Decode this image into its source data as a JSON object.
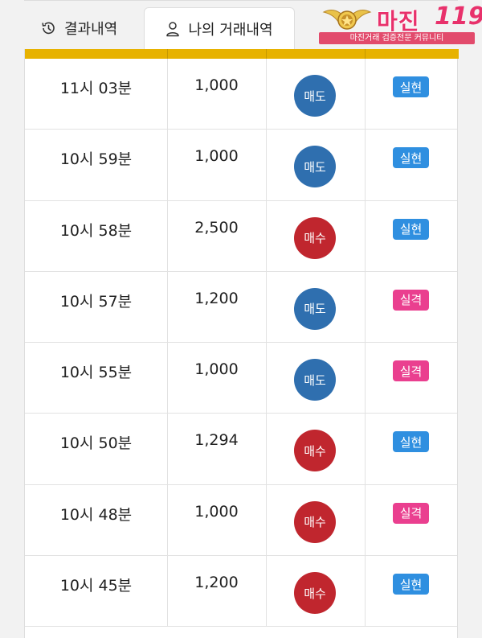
{
  "tabs": [
    {
      "label": "결과내역",
      "icon": "history-icon",
      "active": false
    },
    {
      "label": "나의 거래내역",
      "icon": "user-icon",
      "active": true
    }
  ],
  "logo": {
    "title": "마진",
    "number": "119",
    "subtitle": "마진거래 검증전문 커뮤니티"
  },
  "colors": {
    "sell": "#2f6faf",
    "buy": "#c0262e",
    "profit": "#2f8fe0",
    "loss": "#ea3f8f",
    "header_bar": "#e7b200"
  },
  "trades": [
    {
      "time": "11시 03분",
      "amount": "1,000",
      "side": "매도",
      "side_type": "sell",
      "result": "실현",
      "result_type": "profit"
    },
    {
      "time": "10시 59분",
      "amount": "1,000",
      "side": "매도",
      "side_type": "sell",
      "result": "실현",
      "result_type": "profit"
    },
    {
      "time": "10시 58분",
      "amount": "2,500",
      "side": "매수",
      "side_type": "buy",
      "result": "실현",
      "result_type": "profit"
    },
    {
      "time": "10시 57분",
      "amount": "1,200",
      "side": "매도",
      "side_type": "sell",
      "result": "실격",
      "result_type": "loss"
    },
    {
      "time": "10시 55분",
      "amount": "1,000",
      "side": "매도",
      "side_type": "sell",
      "result": "실격",
      "result_type": "loss"
    },
    {
      "time": "10시 50분",
      "amount": "1,294",
      "side": "매수",
      "side_type": "buy",
      "result": "실현",
      "result_type": "profit"
    },
    {
      "time": "10시 48분",
      "amount": "1,000",
      "side": "매수",
      "side_type": "buy",
      "result": "실격",
      "result_type": "loss"
    },
    {
      "time": "10시 45분",
      "amount": "1,200",
      "side": "매수",
      "side_type": "buy",
      "result": "실현",
      "result_type": "profit"
    }
  ]
}
